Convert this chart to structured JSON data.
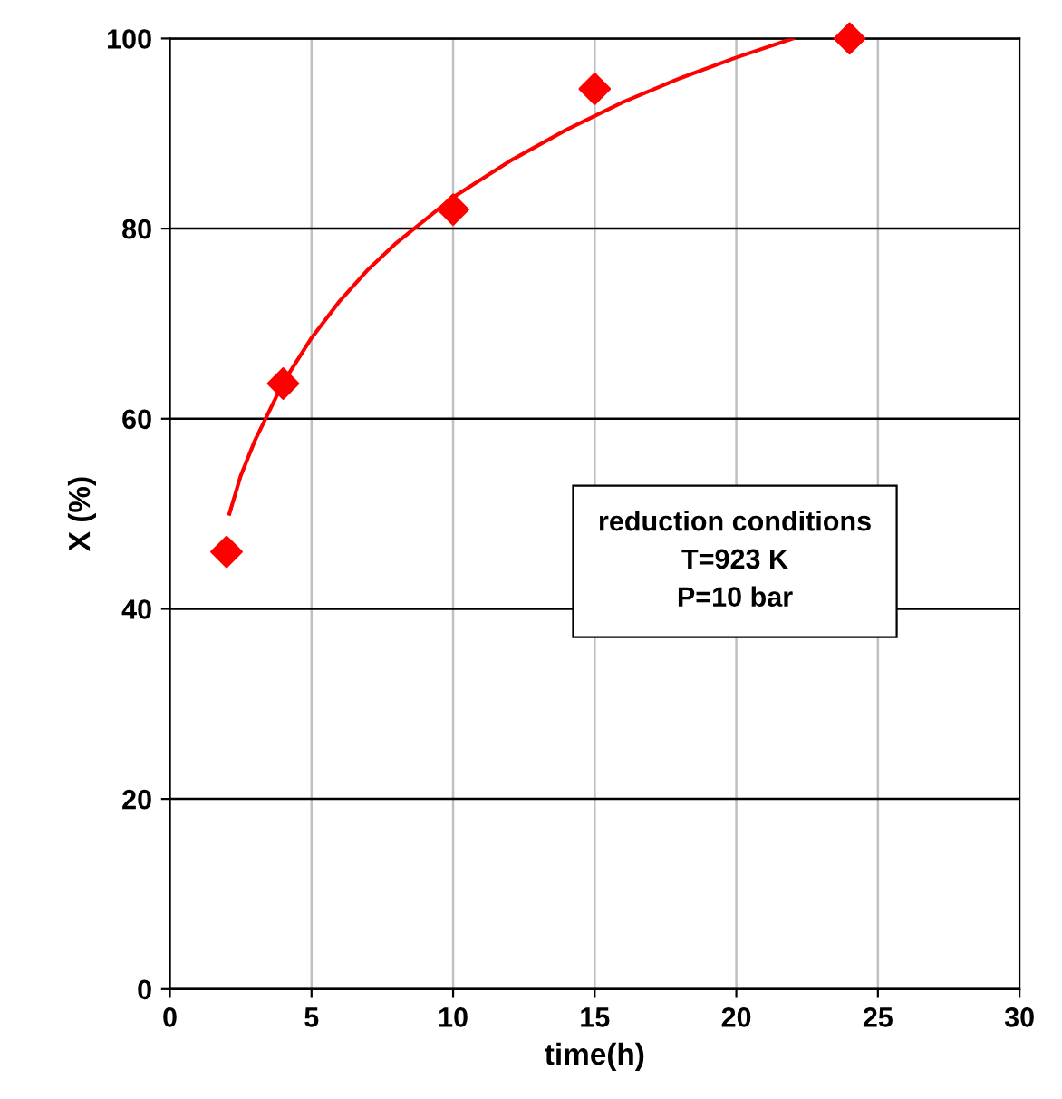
{
  "chart_data": {
    "type": "scatter",
    "xlabel": "time(h)",
    "ylabel": "X (%)",
    "xlim": [
      0,
      30
    ],
    "ylim": [
      0,
      100
    ],
    "xticks": [
      0,
      5,
      10,
      15,
      20,
      25,
      30
    ],
    "yticks": [
      0,
      20,
      40,
      60,
      80,
      100
    ],
    "grid": true,
    "legend": false,
    "marker": "diamond",
    "series": [
      {
        "color": "#ff0000",
        "x": [
          2,
          4,
          10,
          15,
          24
        ],
        "values": [
          46,
          63.7,
          82,
          94.7,
          100
        ]
      },
      {
        "type": "line",
        "color": "#ff0000",
        "marker": "none",
        "line_style": "solid",
        "x": [
          2.1,
          2.5,
          3,
          4,
          5,
          6,
          7,
          8,
          10,
          12,
          14,
          16,
          18,
          20,
          22
        ],
        "values": [
          50,
          54,
          57.7,
          63.8,
          68.5,
          72.4,
          75.7,
          78.5,
          83.3,
          87.1,
          90.4,
          93.3,
          95.8,
          98.0,
          100
        ]
      }
    ],
    "annotations": [
      "reduction conditions\nT=923 K\nP=10 bar"
    ]
  }
}
